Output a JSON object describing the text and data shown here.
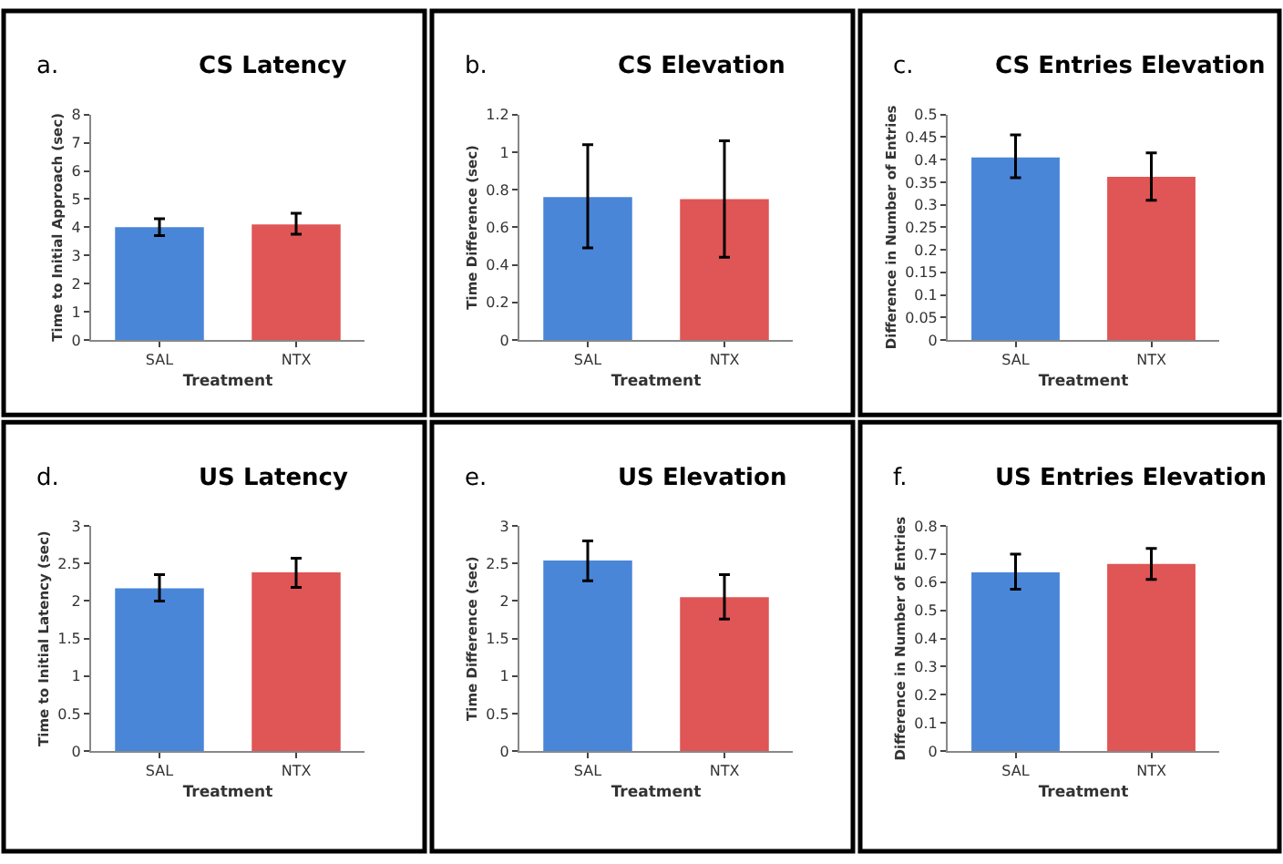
{
  "chart_data": [
    {
      "type": "bar",
      "title": "CS Latency",
      "annotations": [
        "a."
      ],
      "xlabel": "Treatment",
      "ylabel": "Time to Initial Approach (sec)",
      "categories": [
        "SAL",
        "NTX"
      ],
      "values": [
        4.0,
        4.1
      ],
      "errors": [
        [
          3.7,
          4.3
        ],
        [
          3.75,
          4.5
        ]
      ],
      "colors": [
        "#4a86d8",
        "#e05555"
      ],
      "ylim": [
        0,
        8
      ],
      "yticks": [
        0,
        1,
        2,
        3,
        4,
        5,
        6,
        7,
        8
      ],
      "grid": false
    },
    {
      "type": "bar",
      "title": "CS Elevation",
      "annotations": [
        "b."
      ],
      "xlabel": "Treatment",
      "ylabel": "Time Difference (sec)",
      "categories": [
        "SAL",
        "NTX"
      ],
      "values": [
        0.76,
        0.75
      ],
      "errors": [
        [
          0.49,
          1.04
        ],
        [
          0.44,
          1.06
        ]
      ],
      "colors": [
        "#4a86d8",
        "#e05555"
      ],
      "ylim": [
        0,
        1.2
      ],
      "yticks": [
        0,
        0.2,
        0.4,
        0.6,
        0.8,
        1,
        1.2
      ],
      "grid": false
    },
    {
      "type": "bar",
      "title": "CS Entries Elevation",
      "annotations": [
        "c."
      ],
      "xlabel": "Treatment",
      "ylabel": "Difference in Number of Entries",
      "categories": [
        "SAL",
        "NTX"
      ],
      "values": [
        0.405,
        0.362
      ],
      "errors": [
        [
          0.36,
          0.455
        ],
        [
          0.31,
          0.415
        ]
      ],
      "colors": [
        "#4a86d8",
        "#e05555"
      ],
      "ylim": [
        0,
        0.5
      ],
      "yticks": [
        0,
        0.05,
        0.1,
        0.15,
        0.2,
        0.25,
        0.3,
        0.35,
        0.4,
        0.45,
        0.5
      ],
      "grid": false
    },
    {
      "type": "bar",
      "title": "US Latency",
      "annotations": [
        "d."
      ],
      "xlabel": "Treatment",
      "ylabel": "Time to Initial Latency (sec)",
      "categories": [
        "SAL",
        "NTX"
      ],
      "values": [
        2.17,
        2.38
      ],
      "errors": [
        [
          2.0,
          2.35
        ],
        [
          2.18,
          2.57
        ]
      ],
      "colors": [
        "#4a86d8",
        "#e05555"
      ],
      "ylim": [
        0,
        3
      ],
      "yticks": [
        0,
        0.5,
        1,
        1.5,
        2,
        2.5,
        3
      ],
      "grid": false
    },
    {
      "type": "bar",
      "title": "US Elevation",
      "annotations": [
        "e."
      ],
      "xlabel": "Treatment",
      "ylabel": "Time Difference (sec)",
      "categories": [
        "SAL",
        "NTX"
      ],
      "values": [
        2.54,
        2.05
      ],
      "errors": [
        [
          2.27,
          2.8
        ],
        [
          1.76,
          2.35
        ]
      ],
      "colors": [
        "#4a86d8",
        "#e05555"
      ],
      "ylim": [
        0,
        3
      ],
      "yticks": [
        0,
        0.5,
        1,
        1.5,
        2,
        2.5,
        3
      ],
      "grid": false
    },
    {
      "type": "bar",
      "title": "US Entries Elevation",
      "annotations": [
        "f."
      ],
      "xlabel": "Treatment",
      "ylabel": "Difference in Number of Entries",
      "categories": [
        "SAL",
        "NTX"
      ],
      "values": [
        0.635,
        0.665
      ],
      "errors": [
        [
          0.575,
          0.7
        ],
        [
          0.61,
          0.72
        ]
      ],
      "colors": [
        "#4a86d8",
        "#e05555"
      ],
      "ylim": [
        0,
        0.8
      ],
      "yticks": [
        0,
        0.1,
        0.2,
        0.3,
        0.4,
        0.5,
        0.6,
        0.7,
        0.8
      ],
      "grid": false
    }
  ]
}
